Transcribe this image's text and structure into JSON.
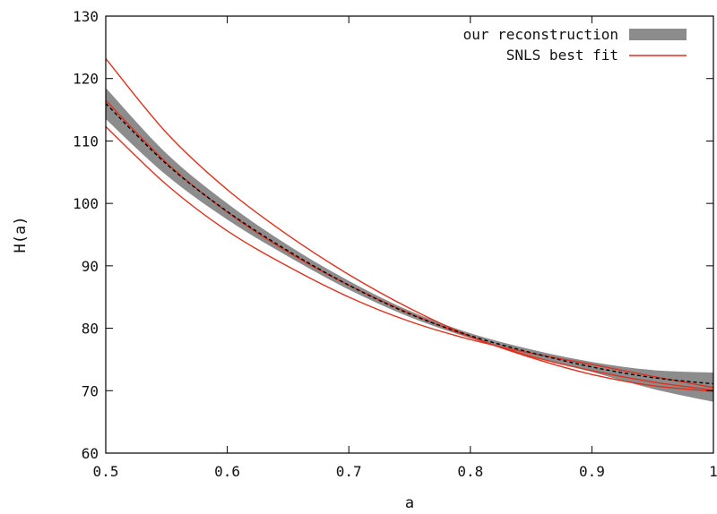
{
  "chart_data": {
    "type": "line",
    "title": "",
    "xlabel": "a",
    "ylabel": "H(a)",
    "xlim": [
      0.5,
      1.0
    ],
    "ylim": [
      60,
      130
    ],
    "x_ticks": [
      {
        "value": 0.5,
        "label": "0.5"
      },
      {
        "value": 0.6,
        "label": "0.6"
      },
      {
        "value": 0.7,
        "label": "0.7"
      },
      {
        "value": 0.8,
        "label": "0.8"
      },
      {
        "value": 0.9,
        "label": "0.9"
      },
      {
        "value": 1.0,
        "label": "1"
      }
    ],
    "y_ticks": [
      {
        "value": 60,
        "label": "60"
      },
      {
        "value": 70,
        "label": "70"
      },
      {
        "value": 80,
        "label": "80"
      },
      {
        "value": 90,
        "label": "90"
      },
      {
        "value": 100,
        "label": "100"
      },
      {
        "value": 110,
        "label": "110"
      },
      {
        "value": 120,
        "label": "120"
      },
      {
        "value": 130,
        "label": "130"
      }
    ],
    "grid": false,
    "legend_position": "top-right",
    "x": [
      0.5,
      0.55,
      0.6,
      0.65,
      0.7,
      0.75,
      0.8,
      0.85,
      0.9,
      0.95,
      1.0
    ],
    "series": [
      {
        "name": "our reconstruction",
        "kind": "band",
        "color": "#8c8c8c",
        "lower": [
          113.5,
          104.5,
          97.4,
          91.5,
          86.2,
          81.8,
          78.4,
          75.6,
          73.0,
          70.3,
          68.2
        ],
        "upper": [
          118.5,
          108.0,
          100.0,
          93.3,
          87.6,
          82.8,
          79.2,
          76.6,
          74.6,
          73.3,
          72.9
        ]
      },
      {
        "name": "",
        "kind": "mean",
        "color": "#000000",
        "dashed": true,
        "values": [
          116.0,
          106.3,
          98.7,
          92.4,
          86.9,
          82.3,
          78.8,
          76.1,
          73.8,
          72.1,
          71.1
        ]
      },
      {
        "name": "SNLS best fit",
        "kind": "line",
        "color": "#e0301e",
        "values": [
          116.5,
          106.5,
          98.6,
          92.2,
          86.9,
          82.4,
          78.6,
          75.5,
          73.2,
          71.4,
          70.1
        ]
      },
      {
        "name": "",
        "kind": "line",
        "color": "#e0301e",
        "values": [
          123.2,
          111.3,
          102.2,
          94.9,
          88.6,
          83.2,
          78.7,
          75.3,
          72.6,
          70.8,
          69.9
        ]
      },
      {
        "name": "",
        "kind": "line",
        "color": "#e0301e",
        "values": [
          112.3,
          103.0,
          95.6,
          89.9,
          85.0,
          81.1,
          78.2,
          76.0,
          74.2,
          72.3,
          70.5
        ]
      }
    ]
  }
}
